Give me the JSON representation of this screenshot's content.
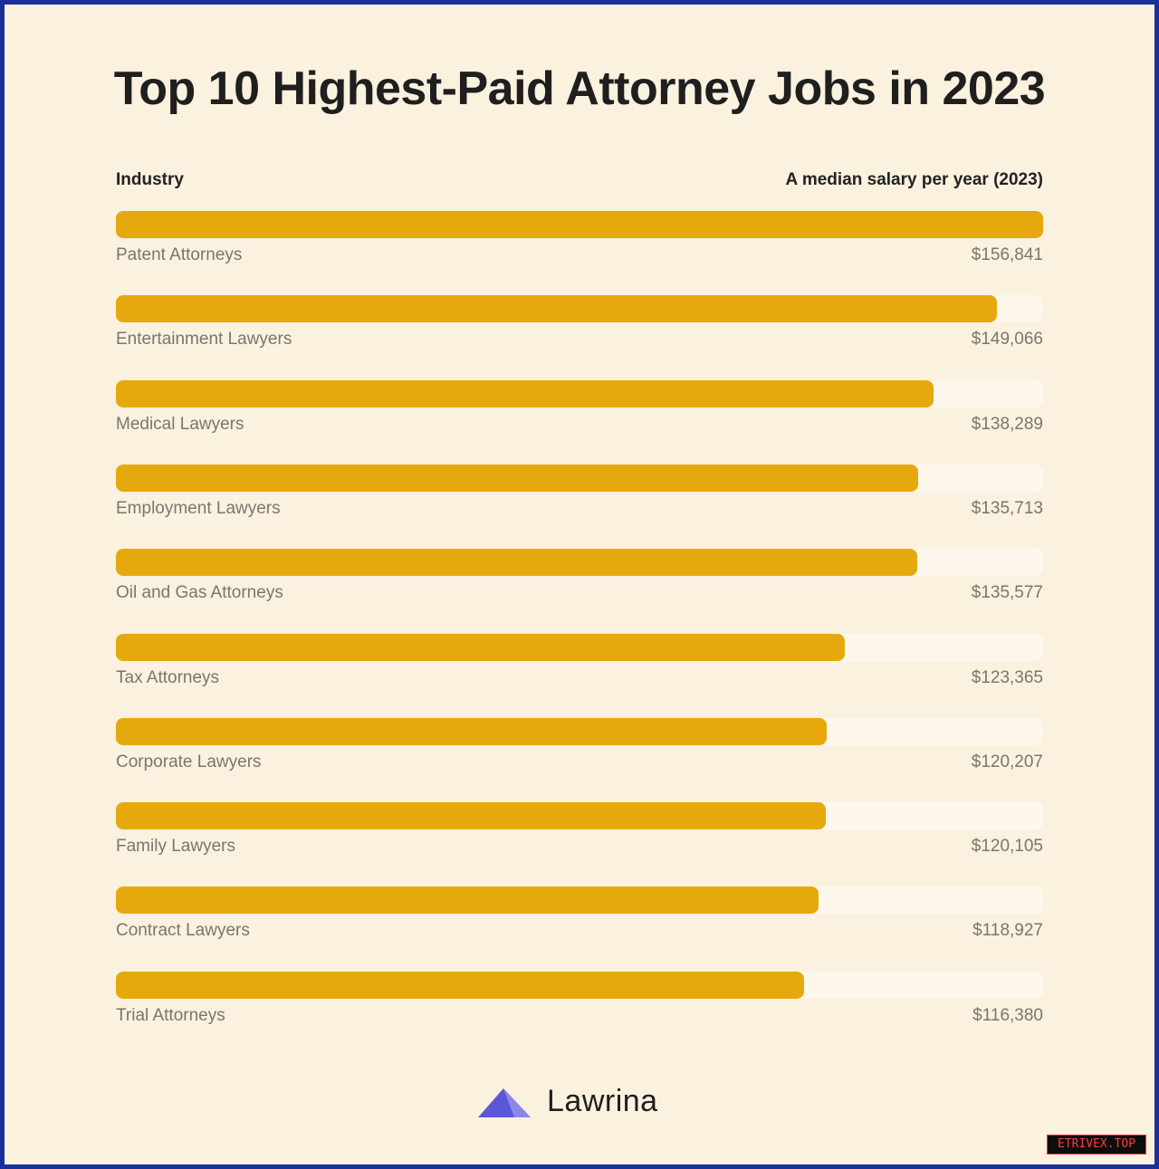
{
  "chart_data": {
    "type": "bar",
    "title": "Top 10 Highest-Paid Attorney Jobs in 2023",
    "xlabel": "Industry",
    "ylabel": "A median salary per year (2023)",
    "categories": [
      "Patent Attorneys",
      "Entertainment Lawyers",
      "Medical Lawyers",
      "Employment Lawyers",
      "Oil and Gas Attorneys",
      "Tax Attorneys",
      "Corporate Lawyers",
      "Family Lawyers",
      "Contract Lawyers",
      "Trial Attorneys"
    ],
    "values": [
      156841,
      149066,
      138289,
      135713,
      135577,
      123365,
      120207,
      120105,
      118927,
      116380
    ],
    "value_labels": [
      "$156,841",
      "$149,066",
      "$138,289",
      "$135,713",
      "$135,577",
      "$123,365",
      "$120,207",
      "$120,105",
      "$118,927",
      "$116,380"
    ],
    "xlim": [
      0,
      156841
    ],
    "orientation": "horizontal",
    "grid": false,
    "colors": {
      "bar": "#e6a90d",
      "track": "#fdf7ec",
      "background": "#fbf1df",
      "frame": "#1b2f9a"
    }
  },
  "brand": {
    "name": "Lawrina",
    "logo_icon": "mountain-icon",
    "logo_color": "#5b57d6"
  },
  "watermark": "ETRIVEX.TOP"
}
